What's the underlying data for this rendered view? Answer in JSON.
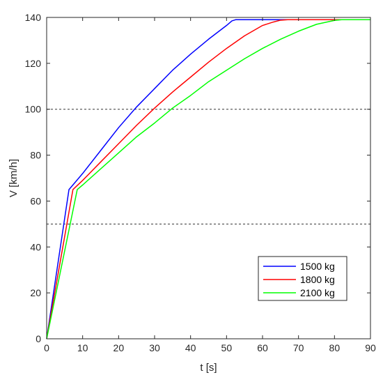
{
  "chart_data": {
    "type": "line",
    "title": "",
    "xlabel": "t [s]",
    "ylabel": "V [km/h]",
    "xlim": [
      0,
      90
    ],
    "ylim": [
      0,
      140
    ],
    "xticks": [
      0,
      10,
      20,
      30,
      40,
      50,
      60,
      70,
      80,
      90
    ],
    "yticks": [
      0,
      20,
      40,
      60,
      80,
      100,
      120,
      140
    ],
    "grid": false,
    "reference_lines": [
      {
        "axis": "y",
        "value": 50,
        "style": "dashed",
        "color": "#333333"
      },
      {
        "axis": "y",
        "value": 100,
        "style": "dashed",
        "color": "#333333"
      }
    ],
    "legend_position": "bottom-right",
    "series": [
      {
        "name": "1500 kg",
        "color": "#0000ff",
        "x": [
          0,
          6.2,
          10,
          15,
          20,
          25,
          30,
          35,
          40,
          45,
          50,
          51.5,
          52.5,
          54,
          90
        ],
        "y": [
          0,
          65,
          72,
          82,
          92,
          101,
          109,
          117,
          124,
          130.5,
          136.5,
          138.5,
          139,
          139,
          139
        ]
      },
      {
        "name": "1800 kg",
        "color": "#ff0000",
        "x": [
          0,
          7.3,
          10,
          15,
          20,
          25,
          30,
          35,
          40,
          45,
          50,
          55,
          60,
          63,
          65,
          67,
          90
        ],
        "y": [
          0,
          65,
          69,
          77,
          85,
          93,
          100.5,
          107.5,
          114,
          120.5,
          126.5,
          132,
          136.5,
          138,
          138.8,
          139,
          139
        ]
      },
      {
        "name": "2100 kg",
        "color": "#00ff00",
        "x": [
          0,
          8.5,
          10,
          15,
          20,
          25,
          30,
          35,
          40,
          45,
          50,
          55,
          60,
          65,
          70,
          75,
          80,
          82,
          90
        ],
        "y": [
          0,
          65,
          67,
          74,
          81,
          88,
          94,
          100.5,
          106,
          112,
          117,
          122,
          126.5,
          130.5,
          134,
          137,
          138.7,
          139,
          139
        ]
      }
    ]
  }
}
